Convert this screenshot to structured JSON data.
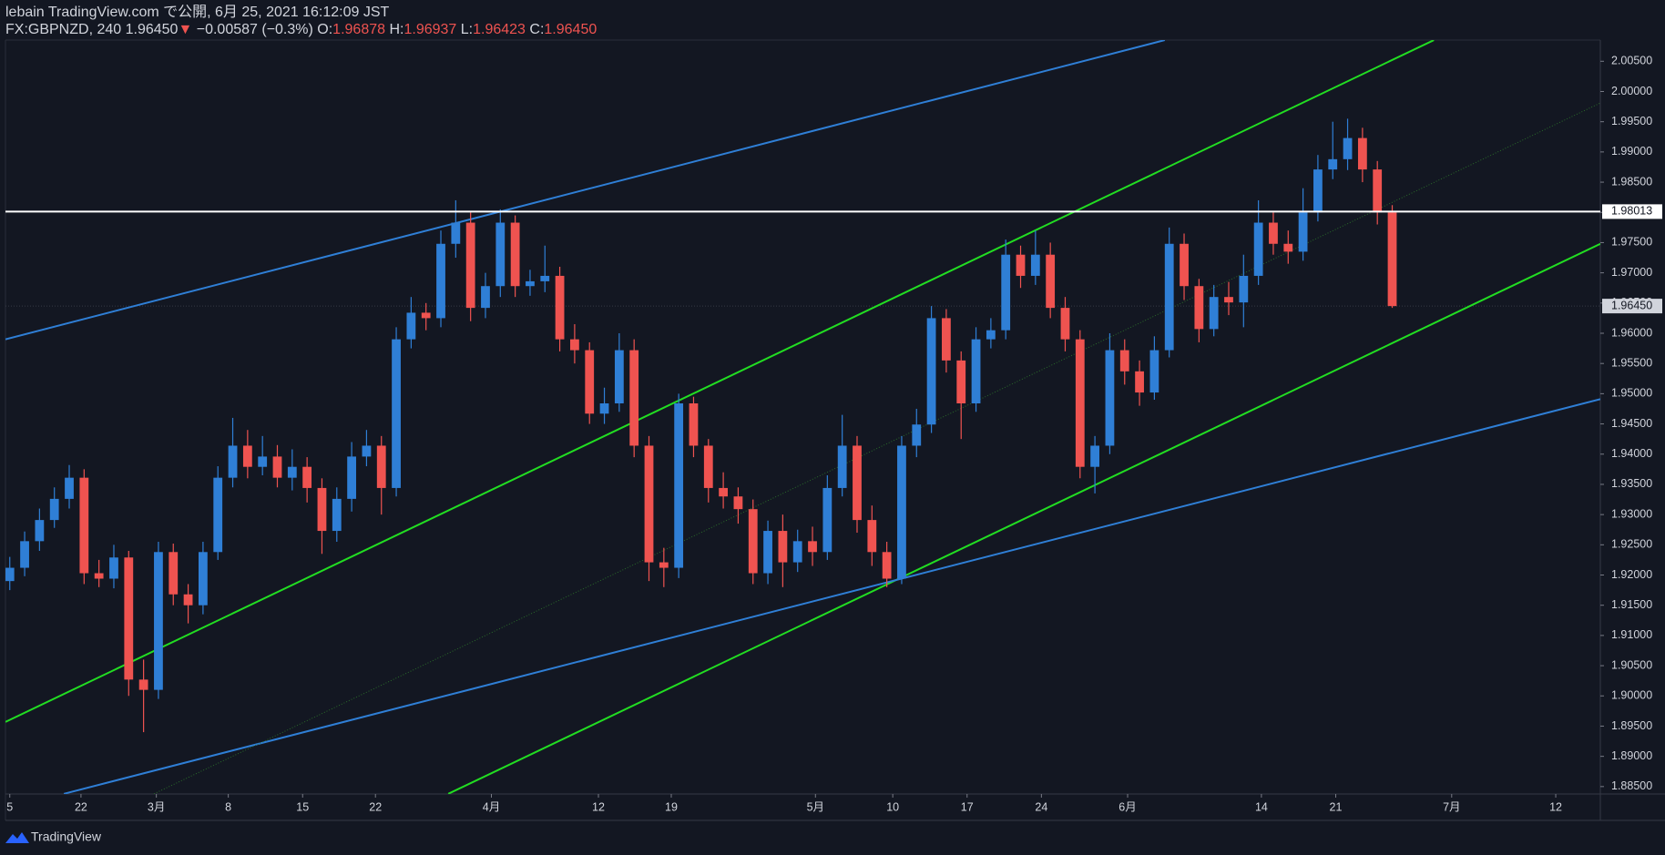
{
  "header": {
    "line1": "lebain TradingView.com で公開, 6月 25, 2021 16:12:09 JST",
    "symbol": "FX:GBPNZD, 240 1.96450",
    "arrow": "▼",
    "change": "−0.00587 (−0.3%)",
    "o_label": "O:",
    "o_value": "1.96878",
    "h_label": "H:",
    "h_value": "1.96937",
    "l_label": "L:",
    "l_value": "1.96423",
    "c_label": "C:",
    "c_value": "1.96450"
  },
  "footer": {
    "brand": "TradingView"
  },
  "chart_data": {
    "type": "candlestick",
    "up_color": "#2f7fd6",
    "down_color": "#ef5350",
    "grid": false,
    "ylim": [
      1.88377,
      2.00851
    ],
    "yticks": [
      {
        "value": 2.005,
        "label": "2.00500"
      },
      {
        "value": 2.0,
        "label": "2.00000"
      },
      {
        "value": 1.995,
        "label": "1.99500"
      },
      {
        "value": 1.99,
        "label": "1.99000"
      },
      {
        "value": 1.985,
        "label": "1.98500"
      },
      {
        "value": 1.98,
        "label": "1.98000"
      },
      {
        "value": 1.975,
        "label": "1.97500"
      },
      {
        "value": 1.97,
        "label": "1.97000"
      },
      {
        "value": 1.965,
        "label": "1.96500"
      },
      {
        "value": 1.96,
        "label": "1.96000"
      },
      {
        "value": 1.955,
        "label": "1.95500"
      },
      {
        "value": 1.95,
        "label": "1.95000"
      },
      {
        "value": 1.945,
        "label": "1.94500"
      },
      {
        "value": 1.94,
        "label": "1.94000"
      },
      {
        "value": 1.935,
        "label": "1.93500"
      },
      {
        "value": 1.93,
        "label": "1.93000"
      },
      {
        "value": 1.925,
        "label": "1.92500"
      },
      {
        "value": 1.92,
        "label": "1.92000"
      },
      {
        "value": 1.915,
        "label": "1.91500"
      },
      {
        "value": 1.91,
        "label": "1.91000"
      },
      {
        "value": 1.905,
        "label": "1.90500"
      },
      {
        "value": 1.9,
        "label": "1.90000"
      },
      {
        "value": 1.895,
        "label": "1.89500"
      },
      {
        "value": 1.89,
        "label": "1.89000"
      },
      {
        "value": 1.885,
        "label": "1.88500"
      }
    ],
    "xlim": [
      -0.29,
      107
    ],
    "xticks": [
      {
        "value": 0,
        "label": "5"
      },
      {
        "value": 4.79,
        "label": "22"
      },
      {
        "value": 9.86,
        "label": "3月"
      },
      {
        "value": 14.7,
        "label": "8"
      },
      {
        "value": 19.7,
        "label": "15"
      },
      {
        "value": 24.6,
        "label": "22"
      },
      {
        "value": 32.4,
        "label": "4月"
      },
      {
        "value": 39.6,
        "label": "12"
      },
      {
        "value": 44.5,
        "label": "19"
      },
      {
        "value": 54.2,
        "label": "5月"
      },
      {
        "value": 59.4,
        "label": "10"
      },
      {
        "value": 64.4,
        "label": "17"
      },
      {
        "value": 69.4,
        "label": "24"
      },
      {
        "value": 75.2,
        "label": "6月"
      },
      {
        "value": 84.2,
        "label": "14"
      },
      {
        "value": 89.2,
        "label": "21"
      },
      {
        "value": 97,
        "label": "7月"
      },
      {
        "value": 104,
        "label": "12"
      }
    ],
    "open": [
      1.919,
      1.9212,
      1.9256,
      1.9291,
      1.9326,
      1.9361,
      1.9203,
      1.9194,
      1.9229,
      1.9027,
      1.901,
      1.9238,
      1.9168,
      1.915,
      1.9238,
      1.9361,
      1.9414,
      1.9379,
      1.9396,
      1.9361,
      1.9379,
      1.9344,
      1.9273,
      1.9326,
      1.9396,
      1.9414,
      1.9344,
      1.959,
      1.9634,
      1.9625,
      1.9748,
      1.9783,
      1.9642,
      1.9678,
      1.9783,
      1.9678,
      1.9686,
      1.9695,
      1.959,
      1.9572,
      1.9467,
      1.9484,
      1.9572,
      1.9414,
      1.9221,
      1.9212,
      1.9484,
      1.9414,
      1.9344,
      1.933,
      1.9309,
      1.9203,
      1.9273,
      1.9221,
      1.9256,
      1.9238,
      1.9344,
      1.9414,
      1.9291,
      1.9238,
      1.9194,
      1.9414,
      1.9449,
      1.9625,
      1.9555,
      1.9484,
      1.959,
      1.9605,
      1.973,
      1.9695,
      1.973,
      1.9642,
      1.959,
      1.9379,
      1.9414,
      1.9572,
      1.9537,
      1.9502,
      1.9572,
      1.9748,
      1.9678,
      1.9607,
      1.966,
      1.9651,
      1.9695,
      1.9783,
      1.9748,
      1.9735,
      1.98,
      1.9871,
      1.9888,
      1.9923,
      1.9871,
      1.98
    ],
    "high": [
      1.923,
      1.9272,
      1.931,
      1.9345,
      1.9382,
      1.9375,
      1.9225,
      1.925,
      1.924,
      1.906,
      1.9255,
      1.9252,
      1.9185,
      1.9255,
      1.938,
      1.946,
      1.944,
      1.943,
      1.9415,
      1.9408,
      1.9395,
      1.936,
      1.9345,
      1.942,
      1.944,
      1.943,
      1.961,
      1.966,
      1.965,
      1.977,
      1.982,
      1.98,
      1.97,
      1.9805,
      1.9795,
      1.9705,
      1.9745,
      1.971,
      1.9615,
      1.9585,
      1.951,
      1.96,
      1.959,
      1.943,
      1.9245,
      1.95,
      1.9495,
      1.9425,
      1.937,
      1.9345,
      1.9325,
      1.929,
      1.93,
      1.9275,
      1.928,
      1.9365,
      1.9465,
      1.943,
      1.9315,
      1.9255,
      1.943,
      1.9475,
      1.9645,
      1.964,
      1.957,
      1.961,
      1.9625,
      1.9755,
      1.9745,
      1.977,
      1.975,
      1.966,
      1.9605,
      1.943,
      1.96,
      1.959,
      1.9555,
      1.9595,
      1.9775,
      1.9765,
      1.969,
      1.968,
      1.9685,
      1.973,
      1.982,
      1.98,
      1.977,
      1.984,
      1.9895,
      1.995,
      1.9955,
      1.994,
      1.9885,
      1.9812
    ],
    "low": [
      1.9175,
      1.9198,
      1.924,
      1.9278,
      1.931,
      1.9185,
      1.918,
      1.9178,
      1.9,
      1.894,
      1.8995,
      1.915,
      1.912,
      1.9135,
      1.9225,
      1.9345,
      1.936,
      1.9365,
      1.9345,
      1.934,
      1.932,
      1.9235,
      1.9255,
      1.9305,
      1.938,
      1.93,
      1.933,
      1.9575,
      1.9605,
      1.961,
      1.9725,
      1.962,
      1.9625,
      1.966,
      1.966,
      1.9662,
      1.9668,
      1.957,
      1.955,
      1.945,
      1.945,
      1.947,
      1.9395,
      1.919,
      1.918,
      1.9195,
      1.9395,
      1.932,
      1.931,
      1.9285,
      1.9185,
      1.9185,
      1.918,
      1.9205,
      1.9215,
      1.9225,
      1.933,
      1.927,
      1.9215,
      1.918,
      1.9185,
      1.9395,
      1.9435,
      1.9535,
      1.9425,
      1.947,
      1.9575,
      1.959,
      1.9675,
      1.968,
      1.9625,
      1.957,
      1.936,
      1.9335,
      1.94,
      1.9515,
      1.948,
      1.949,
      1.956,
      1.9655,
      1.9585,
      1.9595,
      1.963,
      1.961,
      1.968,
      1.973,
      1.9715,
      1.972,
      1.9785,
      1.9855,
      1.987,
      1.985,
      1.978,
      1.9642
    ],
    "close": [
      1.9212,
      1.9256,
      1.9291,
      1.9326,
      1.9361,
      1.9203,
      1.9194,
      1.9229,
      1.9027,
      1.901,
      1.9238,
      1.9168,
      1.915,
      1.9238,
      1.9361,
      1.9414,
      1.9379,
      1.9396,
      1.9361,
      1.9379,
      1.9344,
      1.9273,
      1.9326,
      1.9396,
      1.9414,
      1.9344,
      1.959,
      1.9634,
      1.9625,
      1.9748,
      1.9783,
      1.9642,
      1.9678,
      1.9783,
      1.9678,
      1.9686,
      1.9695,
      1.959,
      1.9572,
      1.9467,
      1.9484,
      1.9572,
      1.9414,
      1.9221,
      1.9212,
      1.9484,
      1.9414,
      1.9344,
      1.933,
      1.9309,
      1.9203,
      1.9273,
      1.9221,
      1.9256,
      1.9238,
      1.9344,
      1.9414,
      1.9291,
      1.9238,
      1.9194,
      1.9414,
      1.9449,
      1.9625,
      1.9555,
      1.9484,
      1.959,
      1.9605,
      1.973,
      1.9695,
      1.973,
      1.9642,
      1.959,
      1.9379,
      1.9414,
      1.9572,
      1.9537,
      1.9502,
      1.9572,
      1.9748,
      1.9678,
      1.9607,
      1.966,
      1.9651,
      1.9695,
      1.9783,
      1.9748,
      1.9735,
      1.98,
      1.9871,
      1.9888,
      1.9923,
      1.9871,
      1.98,
      1.9645
    ],
    "drawings": [
      {
        "color": "#2f7fd6",
        "style": "solid",
        "x": [
          -0.29,
          77.7
        ],
        "values": [
          1.959,
          2.0085
        ]
      },
      {
        "color": "#22dd22",
        "style": "solid",
        "x": [
          -0.29,
          95.8
        ],
        "values": [
          1.8957,
          2.0085
        ]
      },
      {
        "color": "#22dd22",
        "style": "solid",
        "x": [
          29.5,
          107
        ],
        "values": [
          1.8838,
          1.9748
        ]
      },
      {
        "color": "#2f7fd6",
        "style": "solid",
        "x": [
          3.64,
          107
        ],
        "values": [
          1.8838,
          1.9491
        ]
      },
      {
        "color": "#2a6b2a",
        "style": "dotted",
        "x": [
          9.7,
          107
        ],
        "values": [
          1.8838,
          1.9981
        ]
      }
    ],
    "hlines": [
      {
        "value": 1.98013,
        "color": "#ffffff"
      }
    ],
    "last_price": {
      "value": 1.9645,
      "label": "1.96450"
    }
  }
}
